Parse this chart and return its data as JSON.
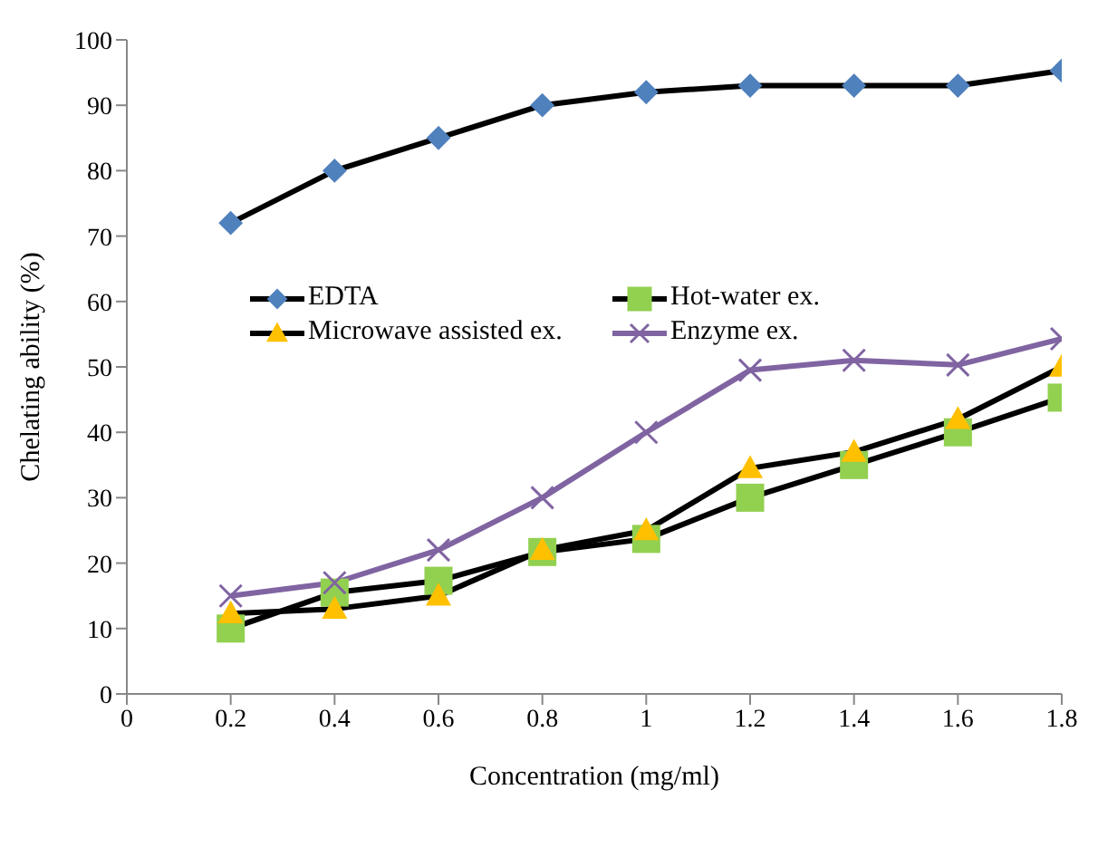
{
  "chart_data": {
    "type": "line",
    "xlabel": "Concentration (mg/ml)",
    "ylabel": "Chelating ability (%)",
    "x": [
      0.2,
      0.4,
      0.6,
      0.8,
      1,
      1.2,
      1.4,
      1.6,
      1.8
    ],
    "series": [
      {
        "name": "EDTA",
        "color": "#000000",
        "colors": [
          "#4f81bd",
          "#4f81bd",
          "#4f81bd",
          "#4f81bd",
          "#4f81bd",
          "#4f81bd",
          "#4f81bd",
          "#4f81bd",
          "#4f81bd"
        ],
        "marker": "diamond",
        "values": [
          72,
          80,
          85,
          90,
          92,
          93,
          93,
          93,
          95.3
        ]
      },
      {
        "name": "Hot-water ex.",
        "color": "#000000",
        "colors": [
          "#92d050",
          "#92d050",
          "#92d050",
          "#92d050",
          "#92d050",
          "#92d050",
          "#92d050",
          "#92d050",
          "#92d050"
        ],
        "marker": "square",
        "values": [
          10,
          15.5,
          17.3,
          21.7,
          23.7,
          30,
          35,
          40,
          45.3
        ]
      },
      {
        "name": "Microwave assisted ex.",
        "color": "#000000",
        "colors": [
          "#ffc000",
          "#ffc000",
          "#ffc000",
          "#ffc000",
          "#ffc000",
          "#ffc000",
          "#ffc000",
          "#ffc000",
          "#ffc000"
        ],
        "marker": "triangle",
        "values": [
          12.3,
          13,
          15,
          22,
          25,
          34.5,
          37,
          42,
          50
        ]
      },
      {
        "name": "Enzyme ex.",
        "color": "#8064a2",
        "marker": "cross",
        "values": [
          15,
          17,
          22,
          30,
          40,
          49.5,
          51,
          50.3,
          54.3
        ]
      }
    ],
    "xlim": [
      0,
      1.8
    ],
    "xticks": [
      0,
      0.2,
      0.4,
      0.6,
      0.8,
      1,
      1.2,
      1.4,
      1.6,
      1.8
    ],
    "ylim": [
      0,
      100
    ],
    "yticks": [
      0,
      10,
      20,
      30,
      40,
      50,
      60,
      70,
      80,
      90,
      100
    ],
    "grid": false,
    "legend": "left",
    "line_style": "solid"
  }
}
